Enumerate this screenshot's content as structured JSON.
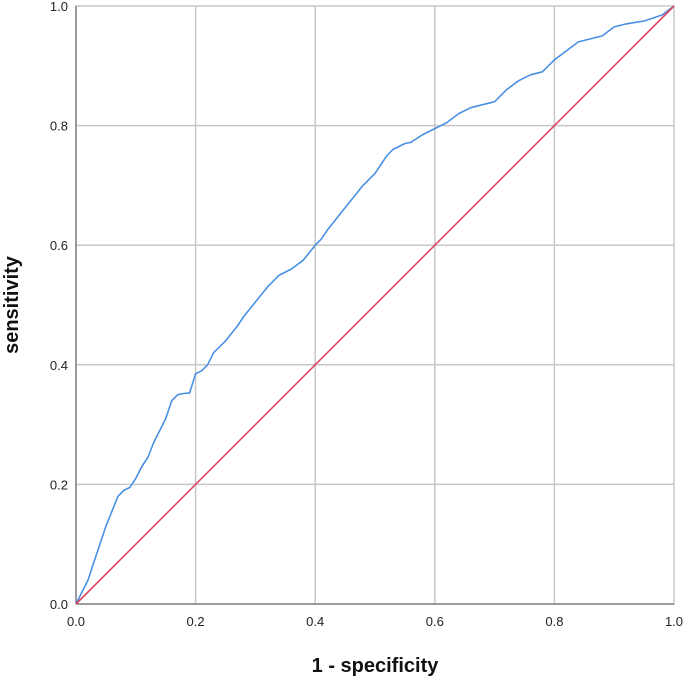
{
  "chart_data": {
    "type": "line",
    "title": "",
    "xlabel": "1 - specificity",
    "ylabel": "sensitivity",
    "xlim": [
      0.0,
      1.0
    ],
    "ylim": [
      0.0,
      1.0
    ],
    "xticks": [
      "0.0",
      "0.2",
      "0.4",
      "0.6",
      "0.8",
      "1.0"
    ],
    "yticks": [
      "0.0",
      "0.2",
      "0.4",
      "0.6",
      "0.8",
      "1.0"
    ],
    "grid": true,
    "legend": "none",
    "series": [
      {
        "color": "#4a90e2",
        "x": [
          0.0,
          0.01,
          0.02,
          0.03,
          0.04,
          0.05,
          0.06,
          0.07,
          0.08,
          0.09,
          0.1,
          0.11,
          0.12,
          0.13,
          0.14,
          0.15,
          0.16,
          0.17,
          0.18,
          0.19,
          0.2,
          0.21,
          0.22,
          0.23,
          0.25,
          0.27,
          0.28,
          0.3,
          0.32,
          0.34,
          0.36,
          0.38,
          0.4,
          0.41,
          0.42,
          0.44,
          0.46,
          0.48,
          0.5,
          0.51,
          0.52,
          0.53,
          0.54,
          0.55,
          0.56,
          0.58,
          0.59,
          0.6,
          0.62,
          0.64,
          0.66,
          0.68,
          0.7,
          0.72,
          0.74,
          0.76,
          0.78,
          0.8,
          0.82,
          0.84,
          0.86,
          0.88,
          0.9,
          0.92,
          0.95,
          0.98,
          1.0
        ],
        "y": [
          0.0,
          0.02,
          0.04,
          0.07,
          0.1,
          0.13,
          0.155,
          0.18,
          0.19,
          0.195,
          0.21,
          0.23,
          0.245,
          0.27,
          0.29,
          0.31,
          0.34,
          0.35,
          0.352,
          0.353,
          0.385,
          0.39,
          0.4,
          0.42,
          0.44,
          0.465,
          0.48,
          0.505,
          0.53,
          0.55,
          0.56,
          0.575,
          0.6,
          0.61,
          0.625,
          0.65,
          0.675,
          0.7,
          0.72,
          0.735,
          0.75,
          0.76,
          0.765,
          0.77,
          0.772,
          0.785,
          0.79,
          0.795,
          0.805,
          0.82,
          0.83,
          0.835,
          0.84,
          0.86,
          0.875,
          0.885,
          0.89,
          0.91,
          0.925,
          0.94,
          0.945,
          0.95,
          0.965,
          0.97,
          0.975,
          0.985,
          1.0
        ]
      },
      {
        "color": "#e0415e",
        "x": [
          0.0,
          1.0
        ],
        "y": [
          0.0,
          1.0
        ]
      }
    ]
  }
}
